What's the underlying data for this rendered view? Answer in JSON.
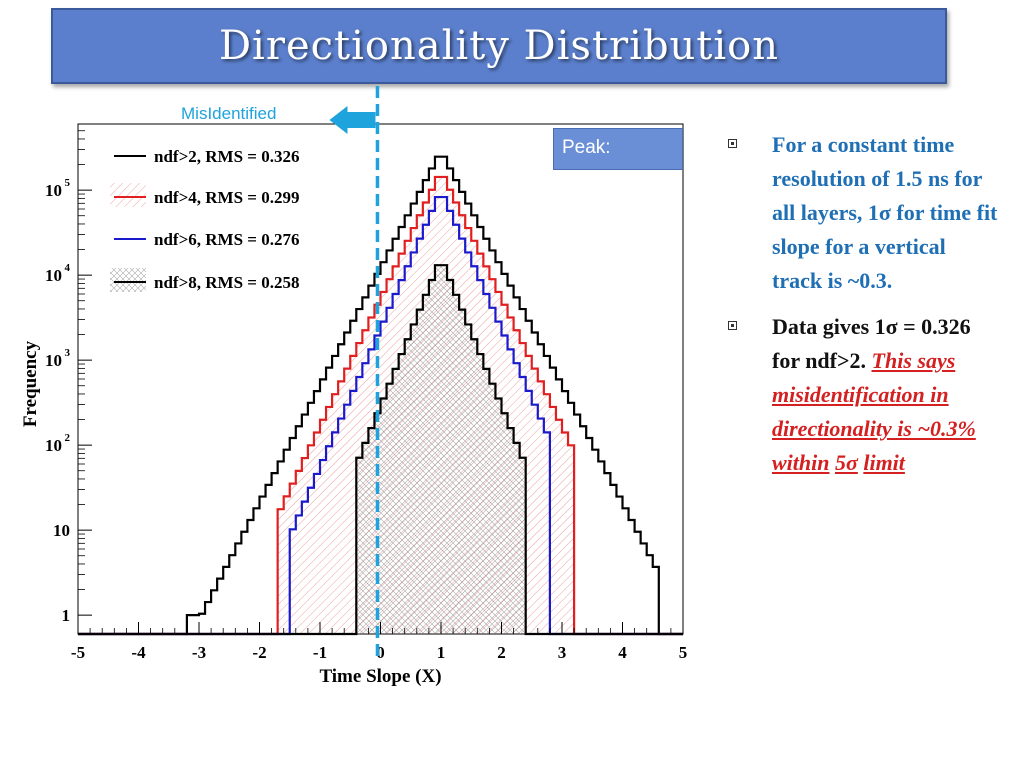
{
  "slide": {
    "title": "Directionality Distribution"
  },
  "peak_box": {
    "text": "Peak:"
  },
  "misidentified_label": "MisIdentified",
  "bullets": {
    "b1": "For a constant time resolution of 1.5 ns for all layers, 1σ for time fit slope for a vertical track is ~0.3.",
    "b2_plain": "Data gives 1σ = 0.326 for ndf>2.",
    "b2_red": "This says misidentification in directionality is ~0.3% within",
    "b2_red_tail": "5σ",
    "b2_limit": "limit"
  },
  "colors": {
    "title_bg": "#5b7fcc",
    "arrow": "#1ea3dd",
    "ndf2": "#000000",
    "ndf4": "#e02020",
    "ndf6": "#1a1acc",
    "ndf8": "#000000",
    "bullet1": "#1f6fb5",
    "bullet2_red": "#d42020"
  },
  "chart_data": {
    "type": "line",
    "xlabel": "Time Slope (X)",
    "ylabel": "Frequency",
    "xlim": [
      -5,
      5
    ],
    "ylim": [
      0.6,
      600000
    ],
    "y_scale": "log",
    "x_ticks": [
      -5,
      -4,
      -3,
      -2,
      -1,
      0,
      1,
      2,
      3,
      4,
      5
    ],
    "y_ticks": [
      {
        "value": 1,
        "label": "1"
      },
      {
        "value": 10,
        "label": "10"
      },
      {
        "value": 100,
        "label": "10",
        "sup": "2"
      },
      {
        "value": 1000,
        "label": "10",
        "sup": "3"
      },
      {
        "value": 10000,
        "label": "10",
        "sup": "4"
      },
      {
        "value": 100000,
        "label": "10",
        "sup": "5"
      }
    ],
    "marker_line_x": -0.05,
    "series": [
      {
        "name": "ndf>2, RMS = 0.326",
        "rms": 0.326,
        "peak": 290000,
        "nonzero_range": [
          -3.2,
          4.6
        ]
      },
      {
        "name": "ndf>4, RMS = 0.299",
        "rms": 0.299,
        "peak": 170000,
        "nonzero_range": [
          -1.7,
          3.25
        ]
      },
      {
        "name": "ndf>6, RMS = 0.276",
        "rms": 0.276,
        "peak": 100000,
        "nonzero_range": [
          -1.55,
          2.8
        ]
      },
      {
        "name": "ndf>8, RMS = 0.258",
        "rms": 0.258,
        "peak": 16000,
        "nonzero_range": [
          -0.4,
          2.4
        ]
      }
    ],
    "legend_position": "top-left"
  }
}
